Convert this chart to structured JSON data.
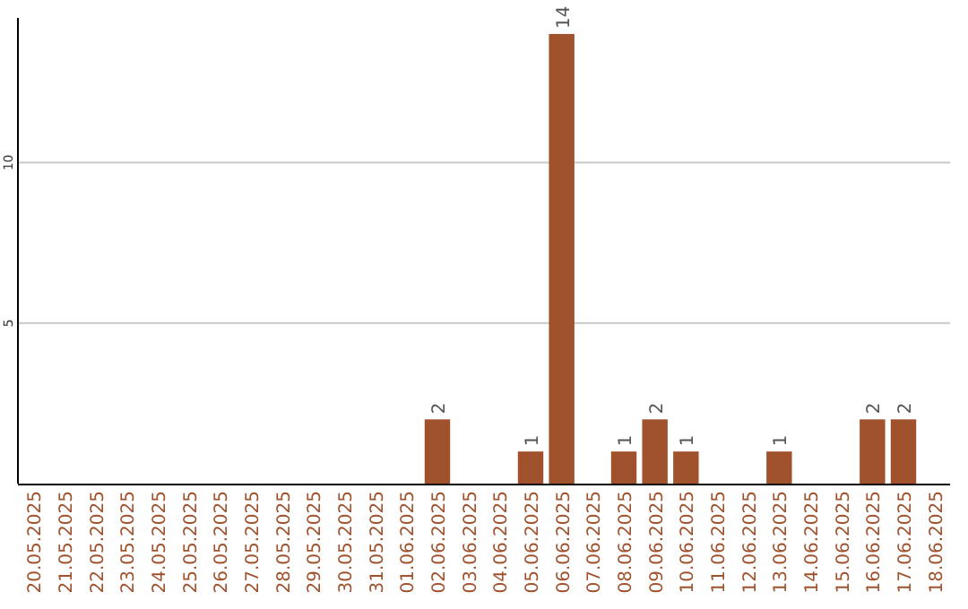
{
  "chart_data": {
    "type": "bar",
    "categories": [
      "20.05.2025",
      "21.05.2025",
      "22.05.2025",
      "23.05.2025",
      "24.05.2025",
      "25.05.2025",
      "26.05.2025",
      "27.05.2025",
      "28.05.2025",
      "29.05.2025",
      "30.05.2025",
      "31.05.2025",
      "01.06.2025",
      "02.06.2025",
      "03.06.2025",
      "04.06.2025",
      "05.06.2025",
      "06.06.2025",
      "07.06.2025",
      "08.06.2025",
      "09.06.2025",
      "10.06.2025",
      "11.06.2025",
      "12.06.2025",
      "13.06.2025",
      "14.06.2025",
      "15.06.2025",
      "16.06.2025",
      "17.06.2025",
      "18.06.2025"
    ],
    "values": [
      0,
      0,
      0,
      0,
      0,
      0,
      0,
      0,
      0,
      0,
      0,
      0,
      0,
      2,
      0,
      0,
      1,
      14,
      0,
      1,
      2,
      1,
      0,
      0,
      1,
      0,
      0,
      2,
      2,
      0
    ],
    "value_labels": [
      null,
      null,
      null,
      null,
      null,
      null,
      null,
      null,
      null,
      null,
      null,
      null,
      null,
      "2",
      null,
      null,
      "1",
      "14",
      null,
      "1",
      "2",
      "1",
      null,
      null,
      "1",
      null,
      null,
      "2",
      "2",
      null
    ],
    "color": "#a0522d",
    "ylim": [
      0,
      14.5
    ],
    "yticks": [
      5,
      10
    ],
    "grid": "y"
  }
}
